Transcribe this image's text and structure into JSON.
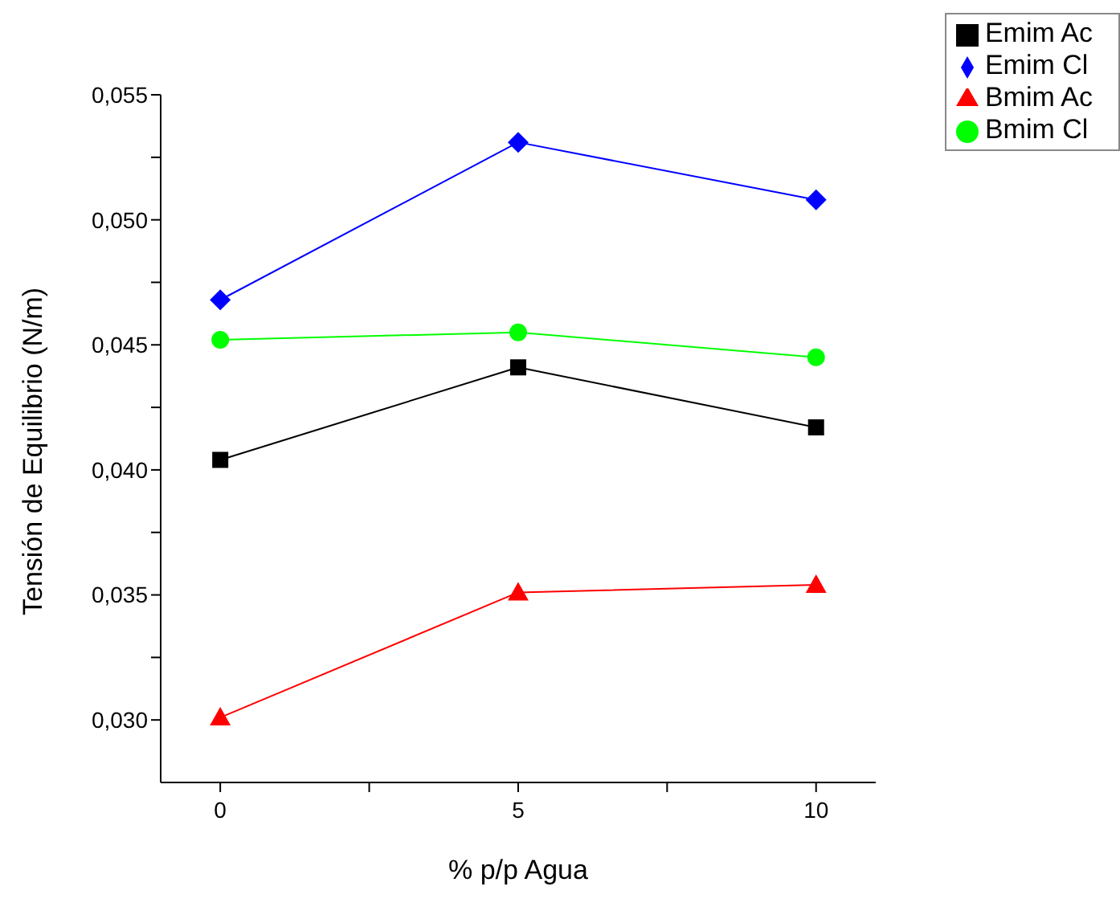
{
  "chart_data": {
    "type": "line",
    "xlabel": "% p/p Agua",
    "ylabel": "Tensión de Equilibrio (N/m)",
    "x": [
      0,
      5,
      10
    ],
    "series": [
      {
        "name": "Emim Ac",
        "color": "#000000",
        "marker": "square",
        "values": [
          0.0404,
          0.0441,
          0.0417
        ]
      },
      {
        "name": "Emim Cl",
        "color": "#0000ff",
        "marker": "diamond",
        "values": [
          0.0468,
          0.0531,
          0.0508
        ]
      },
      {
        "name": "Bmim Ac",
        "color": "#ff0000",
        "marker": "triangle",
        "values": [
          0.0301,
          0.0351,
          0.0354
        ]
      },
      {
        "name": "Bmim Cl",
        "color": "#00ff00",
        "marker": "circle",
        "values": [
          0.0452,
          0.0455,
          0.0445
        ]
      }
    ],
    "xlim": [
      -1,
      11
    ],
    "xticks": [
      0,
      {
        "value": 2.5,
        "label": null
      },
      5,
      {
        "value": 7.5,
        "label": null
      },
      10
    ],
    "ylim": [
      0.0275,
      0.055
    ],
    "yticks": [
      {
        "value": 0.03,
        "label": "0,030"
      },
      {
        "value": 0.0325,
        "label": null
      },
      {
        "value": 0.035,
        "label": "0,035"
      },
      {
        "value": 0.0375,
        "label": null
      },
      {
        "value": 0.04,
        "label": "0,040"
      },
      {
        "value": 0.0425,
        "label": null
      },
      {
        "value": 0.045,
        "label": "0,045"
      },
      {
        "value": 0.0475,
        "label": null
      },
      {
        "value": 0.05,
        "label": "0,050"
      },
      {
        "value": 0.0525,
        "label": null
      },
      {
        "value": 0.055,
        "label": "0,055"
      }
    ],
    "grid": false,
    "legend": "top right",
    "line_style": "solid"
  }
}
